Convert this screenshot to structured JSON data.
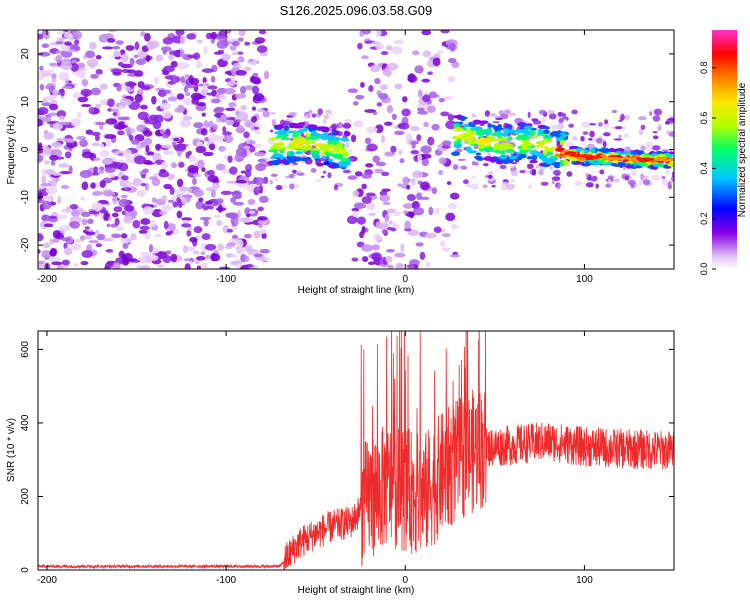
{
  "title": "S126.2025.096.03.58.G09",
  "chart_data": [
    {
      "type": "heatmap",
      "title": "S126.2025.096.03.58.G09",
      "xlabel": "Height of straight line (km)",
      "ylabel": "Frequency (Hz)",
      "xlim": [
        -205,
        150
      ],
      "ylim": [
        -25,
        25
      ],
      "x_ticks": [
        -200,
        -100,
        0,
        100
      ],
      "y_ticks": [
        -20,
        -10,
        0,
        10,
        20
      ],
      "colorbar": {
        "label": "Normalized spectral amplitude",
        "range": [
          0,
          0.95
        ],
        "ticks": [
          0.0,
          0.2,
          0.4,
          0.6,
          0.8
        ],
        "colormap": [
          "#ffffff",
          "#e3c6f7",
          "#8a00e6",
          "#0000ff",
          "#00c8ff",
          "#00ff66",
          "#b4ff00",
          "#ffe600",
          "#ff8000",
          "#ff0000",
          "#ff33cc"
        ]
      },
      "ridge": [
        {
          "x": -75,
          "y": 1.0
        },
        {
          "x": -65,
          "y": 1.2
        },
        {
          "x": -55,
          "y": 1.5
        },
        {
          "x": -45,
          "y": 0.5
        },
        {
          "x": -35,
          "y": -0.5
        },
        {
          "x": 30,
          "y": 3.0
        },
        {
          "x": 40,
          "y": 2.0
        },
        {
          "x": 55,
          "y": 1.0
        },
        {
          "x": 70,
          "y": 1.5
        },
        {
          "x": 80,
          "y": 0.5
        },
        {
          "x": 90,
          "y": -0.8
        },
        {
          "x": 100,
          "y": -1.5
        },
        {
          "x": 110,
          "y": -1.5
        },
        {
          "x": 125,
          "y": -2.0
        },
        {
          "x": 140,
          "y": -2.2
        },
        {
          "x": 150,
          "y": -2.3
        }
      ]
    },
    {
      "type": "line",
      "xlabel": "Height of straight line (km)",
      "ylabel": "SNR (10 * v/v)",
      "xlim": [
        -205,
        150
      ],
      "ylim": [
        0,
        650
      ],
      "x_ticks": [
        -200,
        -100,
        0,
        100
      ],
      "y_ticks": [
        0,
        200,
        400,
        600
      ],
      "color": "#ee2b2b",
      "envelope": [
        {
          "x": -205,
          "y": 10
        },
        {
          "x": -70,
          "y": 10
        },
        {
          "x": -60,
          "y": 70
        },
        {
          "x": -50,
          "y": 100
        },
        {
          "x": -40,
          "y": 120
        },
        {
          "x": -30,
          "y": 130
        },
        {
          "x": -20,
          "y": 200
        },
        {
          "x": -10,
          "y": 230
        },
        {
          "x": 0,
          "y": 220
        },
        {
          "x": 10,
          "y": 200
        },
        {
          "x": 20,
          "y": 260
        },
        {
          "x": 30,
          "y": 300
        },
        {
          "x": 40,
          "y": 330
        },
        {
          "x": 60,
          "y": 340
        },
        {
          "x": 80,
          "y": 350
        },
        {
          "x": 100,
          "y": 335
        },
        {
          "x": 120,
          "y": 330
        },
        {
          "x": 150,
          "y": 325
        }
      ]
    }
  ]
}
